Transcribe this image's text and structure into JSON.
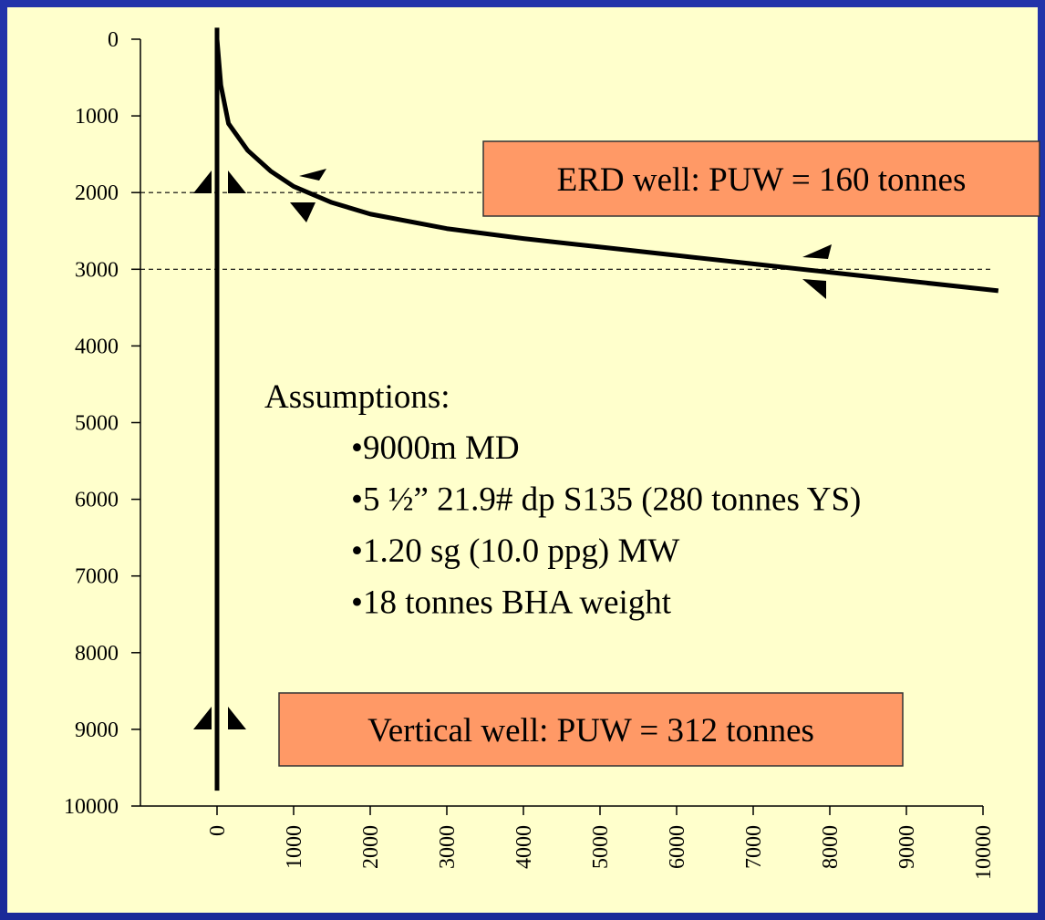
{
  "chart_data": {
    "type": "line",
    "xlim": [
      -1000,
      10000
    ],
    "xticks": [
      0,
      1000,
      2000,
      3000,
      4000,
      5000,
      6000,
      7000,
      8000,
      9000,
      10000
    ],
    "ylim": [
      0,
      10000
    ],
    "yticks": [
      0,
      1000,
      2000,
      3000,
      4000,
      5000,
      6000,
      7000,
      8000,
      9000,
      10000
    ],
    "y_inverted": true,
    "hlines": [
      2000,
      3000
    ],
    "series": [
      {
        "color": "#000000",
        "x": [
          0,
          0
        ],
        "values": [
          -150,
          9800
        ]
      },
      {
        "color": "#000000",
        "x": [
          0,
          50,
          150,
          400,
          700,
          1000,
          1500,
          2000,
          3000,
          4000,
          5000,
          6000,
          7000,
          8000,
          9000,
          10200
        ],
        "values": [
          0,
          600,
          1100,
          1450,
          1720,
          1920,
          2130,
          2280,
          2470,
          2600,
          2710,
          2820,
          2930,
          3040,
          3150,
          3280
        ]
      }
    ],
    "box_color": "#ff9966",
    "boxes": [
      "ERD well: PUW = 160 tonnes",
      "Vertical well: PUW = 312 tonnes"
    ],
    "notes": {
      "title": "Assumptions:",
      "items": [
        "•9000m MD",
        "•5 ½” 21.9# dp S135 (280 tonnes YS)",
        "•1.20 sg (10.0 ppg) MW",
        "•18 tonnes BHA weight"
      ]
    }
  }
}
